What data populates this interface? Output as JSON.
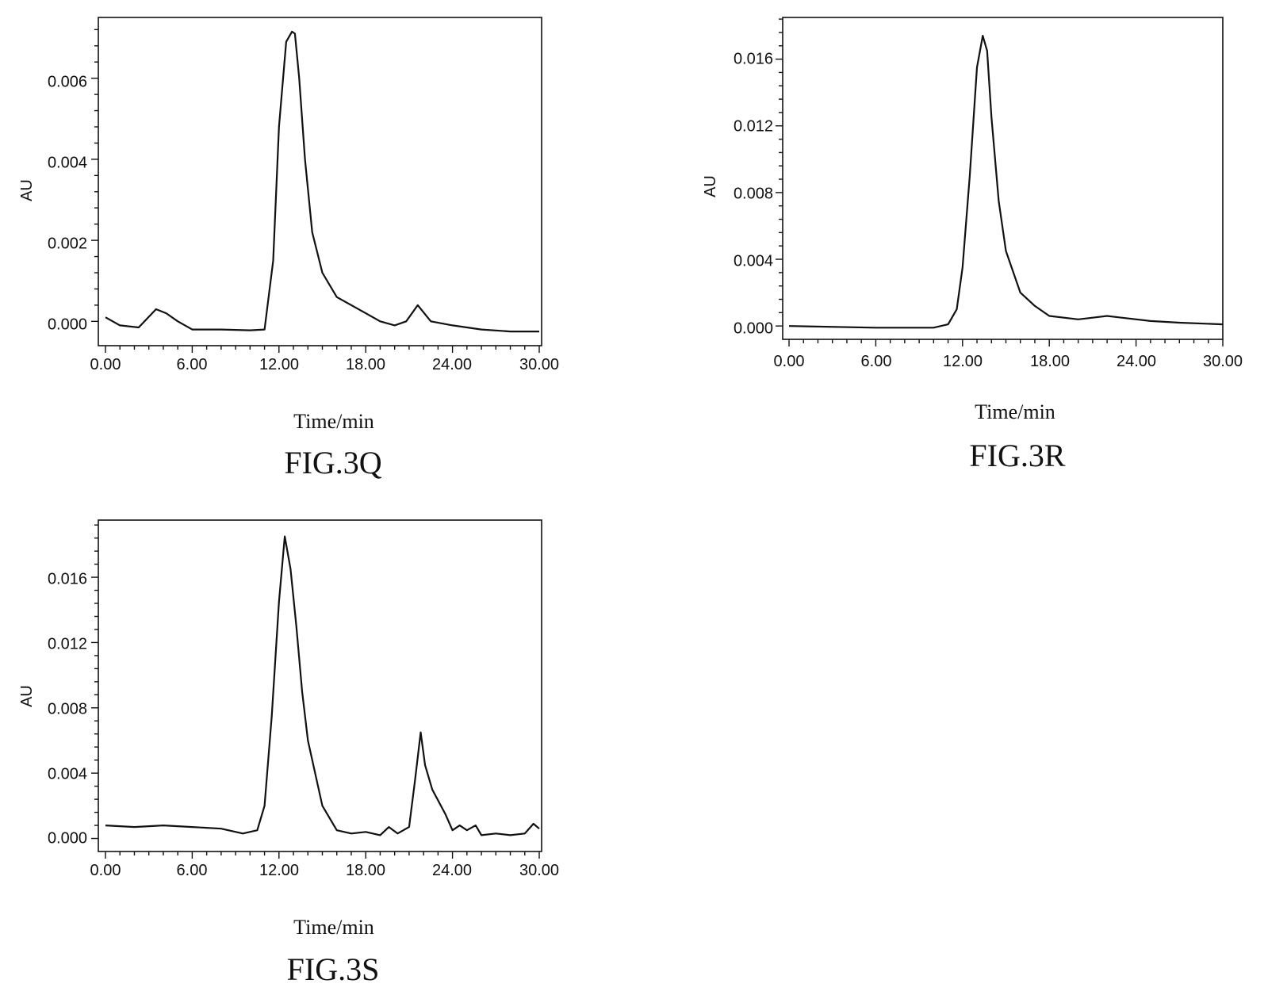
{
  "chart_data": [
    {
      "id": "fig3q",
      "type": "line",
      "caption": "FIG.3Q",
      "xlabel": "Time/min",
      "ylabel": "AU",
      "xlim": [
        0,
        30
      ],
      "ylim": [
        -0.0006,
        0.0075
      ],
      "xticks": [
        "0.00",
        "6.00",
        "12.00",
        "18.00",
        "24.00",
        "30.00"
      ],
      "yticks": [
        "0.000",
        "0.002",
        "0.004",
        "0.006"
      ],
      "grid": false,
      "legend": "none",
      "series": [
        {
          "x": [
            0,
            1,
            2.3,
            3.5,
            4.2,
            5,
            6,
            8,
            10,
            11,
            11.6,
            12,
            12.5,
            12.9,
            13.1,
            13.4,
            13.8,
            14.3,
            15,
            16,
            18,
            19,
            20,
            20.8,
            21.6,
            22.5,
            24,
            26,
            28,
            30
          ],
          "y": [
            0.0001,
            -0.0001,
            -0.00015,
            0.0003,
            0.0002,
            0.0,
            -0.0002,
            -0.0002,
            -0.00022,
            -0.0002,
            0.0015,
            0.0048,
            0.0069,
            0.00715,
            0.0071,
            0.006,
            0.004,
            0.0022,
            0.0012,
            0.0006,
            0.0002,
            0.0,
            -0.0001,
            0.0,
            0.0004,
            0.0,
            -0.0001,
            -0.0002,
            -0.00025,
            -0.00025
          ]
        }
      ]
    },
    {
      "id": "fig3r",
      "type": "line",
      "caption": "FIG.3R",
      "xlabel": "Time/min",
      "ylabel": "AU",
      "xlim": [
        0,
        30
      ],
      "ylim": [
        -0.0008,
        0.0185
      ],
      "xticks": [
        "0.00",
        "6.00",
        "12.00",
        "18.00",
        "24.00",
        "30.00"
      ],
      "yticks": [
        "0.000",
        "0.004",
        "0.008",
        "0.012",
        "0.016"
      ],
      "grid": false,
      "legend": "none",
      "series": [
        {
          "x": [
            0,
            6,
            10,
            11,
            11.6,
            12,
            12.5,
            13,
            13.4,
            13.7,
            14,
            14.5,
            15,
            16,
            17,
            18,
            20,
            21,
            22,
            23,
            25,
            27,
            30
          ],
          "y": [
            0.0,
            -0.0001,
            -0.0001,
            0.0001,
            0.001,
            0.0035,
            0.009,
            0.0155,
            0.0174,
            0.0165,
            0.0125,
            0.0075,
            0.0045,
            0.002,
            0.0012,
            0.0006,
            0.0004,
            0.0005,
            0.0006,
            0.0005,
            0.0003,
            0.0002,
            0.0001
          ]
        }
      ]
    },
    {
      "id": "fig3s",
      "type": "line",
      "caption": "FIG.3S",
      "xlabel": "Time/min",
      "ylabel": "AU",
      "xlim": [
        0,
        30
      ],
      "ylim": [
        -0.0008,
        0.0195
      ],
      "xticks": [
        "0.00",
        "6.00",
        "12.00",
        "18.00",
        "24.00",
        "30.00"
      ],
      "yticks": [
        "0.000",
        "0.004",
        "0.008",
        "0.012",
        "0.016"
      ],
      "grid": false,
      "legend": "none",
      "series": [
        {
          "x": [
            0,
            2,
            4,
            6,
            8,
            9.5,
            10.5,
            11,
            11.5,
            12,
            12.4,
            12.8,
            13.2,
            13.6,
            14,
            15,
            16,
            17,
            18,
            19,
            19.6,
            20.2,
            21,
            21.4,
            21.8,
            22.1,
            22.6,
            23.5,
            24,
            24.5,
            25,
            25.6,
            26,
            27,
            28,
            29,
            29.6,
            30
          ],
          "y": [
            0.0008,
            0.0007,
            0.0008,
            0.0007,
            0.0006,
            0.0003,
            0.0005,
            0.002,
            0.0075,
            0.0145,
            0.0185,
            0.0165,
            0.013,
            0.009,
            0.006,
            0.002,
            0.0005,
            0.0003,
            0.0004,
            0.0002,
            0.0007,
            0.0003,
            0.0007,
            0.0035,
            0.0065,
            0.0045,
            0.003,
            0.0015,
            0.0005,
            0.0008,
            0.0005,
            0.0008,
            0.0002,
            0.0003,
            0.0002,
            0.0003,
            0.0009,
            0.0006
          ]
        }
      ]
    }
  ]
}
